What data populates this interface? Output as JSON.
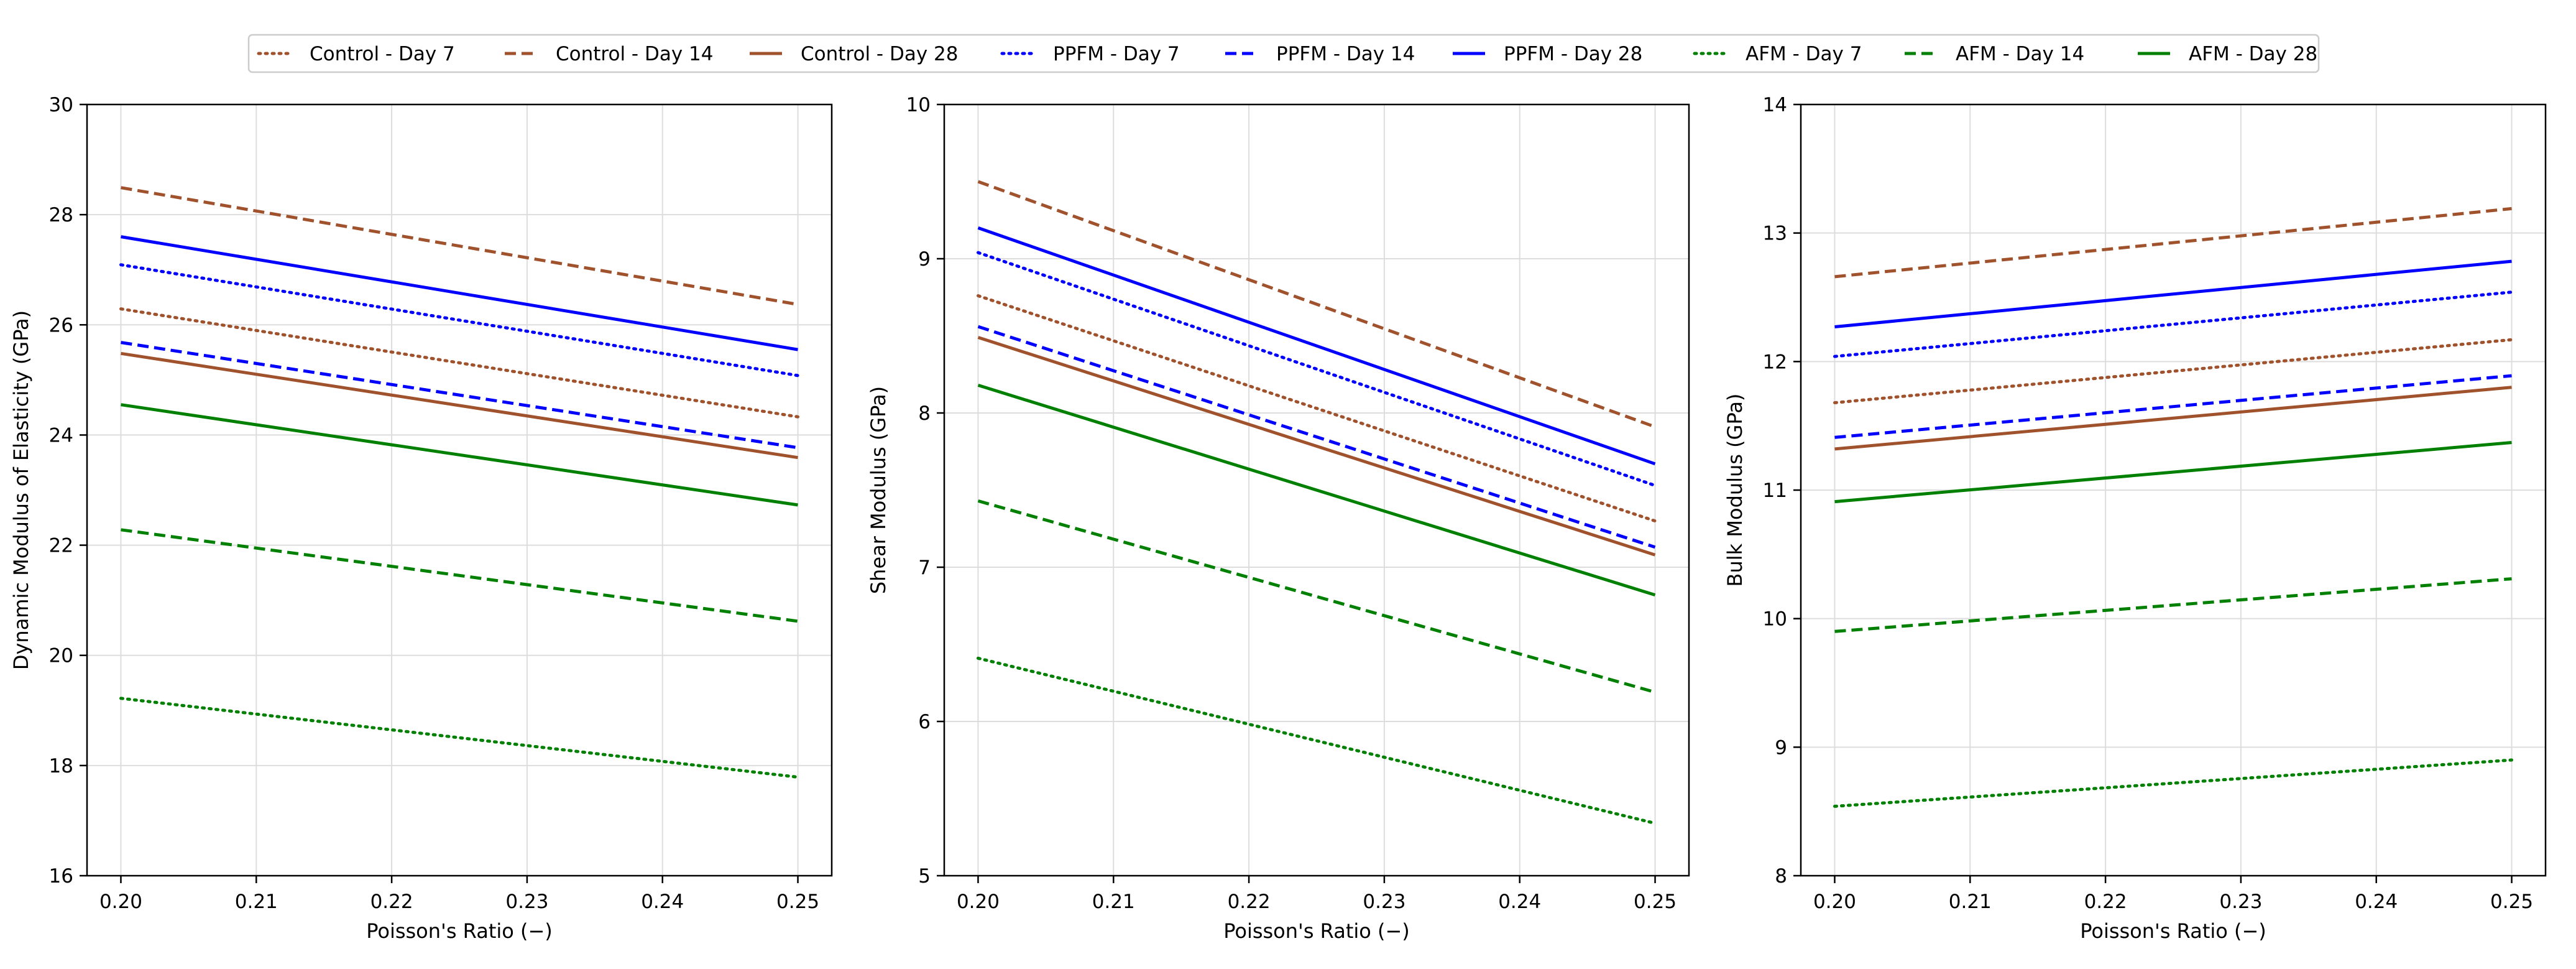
{
  "figure_title": "",
  "legend": {
    "placement": "top-center",
    "entries": [
      "Control - Day 7",
      "Control - Day 14",
      "Control - Day 28",
      "PPFM - Day 7",
      "PPFM - Day 14",
      "PPFM - Day 28",
      "AFM - Day 7",
      "AFM - Day 14",
      "AFM - Day 28"
    ]
  },
  "colors": {
    "Control": "#A0522D",
    "PPFM": "#0000FF",
    "AFM": "#008000"
  },
  "line_styles": {
    "Day 7": "dotted",
    "Day 14": "dashed",
    "Day 28": "solid"
  },
  "chart_data": [
    {
      "type": "line",
      "title": "",
      "xlabel": "Poisson's Ratio (−)",
      "ylabel": "Dynamic Modulus of Elasticity (GPa)",
      "x": [
        0.2,
        0.25
      ],
      "xticks": [
        "0.20",
        "0.21",
        "0.22",
        "0.23",
        "0.24",
        "0.25"
      ],
      "xlim": [
        0.1975,
        0.2525
      ],
      "ylim": [
        16,
        30
      ],
      "yticks": [
        "16",
        "18",
        "20",
        "22",
        "24",
        "26",
        "28",
        "30"
      ],
      "grid": true,
      "series": [
        {
          "name": "Control - Day 7",
          "group": "Control",
          "day": "Day 7",
          "values": [
            26.29,
            24.33
          ]
        },
        {
          "name": "Control - Day 14",
          "group": "Control",
          "day": "Day 14",
          "values": [
            28.49,
            26.37
          ]
        },
        {
          "name": "Control - Day 28",
          "group": "Control",
          "day": "Day 28",
          "values": [
            25.48,
            23.59
          ]
        },
        {
          "name": "PPFM - Day 7",
          "group": "PPFM",
          "day": "Day 7",
          "values": [
            27.09,
            25.08
          ]
        },
        {
          "name": "PPFM - Day 14",
          "group": "PPFM",
          "day": "Day 14",
          "values": [
            25.68,
            23.77
          ]
        },
        {
          "name": "PPFM - Day 28",
          "group": "PPFM",
          "day": "Day 28",
          "values": [
            27.6,
            25.55
          ]
        },
        {
          "name": "AFM - Day 7",
          "group": "AFM",
          "day": "Day 7",
          "values": [
            19.22,
            17.79
          ]
        },
        {
          "name": "AFM - Day 14",
          "group": "AFM",
          "day": "Day 14",
          "values": [
            22.28,
            20.62
          ]
        },
        {
          "name": "AFM - Day 28",
          "group": "AFM",
          "day": "Day 28",
          "values": [
            24.55,
            22.73
          ]
        }
      ]
    },
    {
      "type": "line",
      "title": "",
      "xlabel": "Poisson's Ratio (−)",
      "ylabel": "Shear Modulus (GPa)",
      "x": [
        0.2,
        0.25
      ],
      "xticks": [
        "0.20",
        "0.21",
        "0.22",
        "0.23",
        "0.24",
        "0.25"
      ],
      "xlim": [
        0.1975,
        0.2525
      ],
      "ylim": [
        5,
        10
      ],
      "yticks": [
        "5",
        "6",
        "7",
        "8",
        "9",
        "10"
      ],
      "grid": true,
      "series": [
        {
          "name": "Control - Day 7",
          "group": "Control",
          "day": "Day 7",
          "values": [
            8.76,
            7.3
          ]
        },
        {
          "name": "Control - Day 14",
          "group": "Control",
          "day": "Day 14",
          "values": [
            9.5,
            7.91
          ]
        },
        {
          "name": "Control - Day 28",
          "group": "Control",
          "day": "Day 28",
          "values": [
            8.49,
            7.08
          ]
        },
        {
          "name": "PPFM - Day 7",
          "group": "PPFM",
          "day": "Day 7",
          "values": [
            9.04,
            7.53
          ]
        },
        {
          "name": "PPFM - Day 14",
          "group": "PPFM",
          "day": "Day 14",
          "values": [
            8.56,
            7.13
          ]
        },
        {
          "name": "PPFM - Day 28",
          "group": "PPFM",
          "day": "Day 28",
          "values": [
            9.2,
            7.67
          ]
        },
        {
          "name": "AFM - Day 7",
          "group": "AFM",
          "day": "Day 7",
          "values": [
            6.41,
            5.34
          ]
        },
        {
          "name": "AFM - Day 14",
          "group": "AFM",
          "day": "Day 14",
          "values": [
            7.43,
            6.19
          ]
        },
        {
          "name": "AFM - Day 28",
          "group": "AFM",
          "day": "Day 28",
          "values": [
            8.18,
            6.82
          ]
        }
      ]
    },
    {
      "type": "line",
      "title": "",
      "xlabel": "Poisson's Ratio (−)",
      "ylabel": "Bulk Modulus (GPa)",
      "x": [
        0.2,
        0.25
      ],
      "xticks": [
        "0.20",
        "0.21",
        "0.22",
        "0.23",
        "0.24",
        "0.25"
      ],
      "xlim": [
        0.1975,
        0.2525
      ],
      "ylim": [
        8,
        14
      ],
      "yticks": [
        "8",
        "9",
        "10",
        "11",
        "12",
        "13",
        "14"
      ],
      "grid": true,
      "series": [
        {
          "name": "Control - Day 7",
          "group": "Control",
          "day": "Day 7",
          "values": [
            11.68,
            12.17
          ]
        },
        {
          "name": "Control - Day 14",
          "group": "Control",
          "day": "Day 14",
          "values": [
            12.66,
            13.19
          ]
        },
        {
          "name": "Control - Day 28",
          "group": "Control",
          "day": "Day 28",
          "values": [
            11.32,
            11.8
          ]
        },
        {
          "name": "PPFM - Day 7",
          "group": "PPFM",
          "day": "Day 7",
          "values": [
            12.04,
            12.54
          ]
        },
        {
          "name": "PPFM - Day 14",
          "group": "PPFM",
          "day": "Day 14",
          "values": [
            11.41,
            11.89
          ]
        },
        {
          "name": "PPFM - Day 28",
          "group": "PPFM",
          "day": "Day 28",
          "values": [
            12.27,
            12.78
          ]
        },
        {
          "name": "AFM - Day 7",
          "group": "AFM",
          "day": "Day 7",
          "values": [
            8.54,
            8.9
          ]
        },
        {
          "name": "AFM - Day 14",
          "group": "AFM",
          "day": "Day 14",
          "values": [
            9.9,
            10.31
          ]
        },
        {
          "name": "AFM - Day 28",
          "group": "AFM",
          "day": "Day 28",
          "values": [
            10.91,
            11.37
          ]
        }
      ]
    }
  ]
}
